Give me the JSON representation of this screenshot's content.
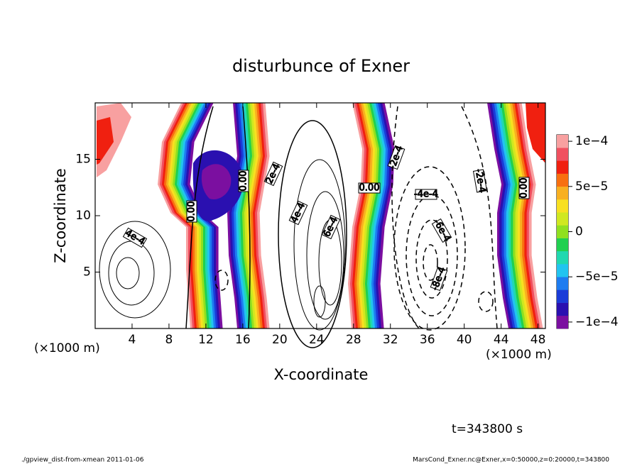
{
  "chart_data": {
    "type": "contour",
    "title": "disturbunce of Exner",
    "x_label": "X-coordinate",
    "y_label": "Z-coordinate",
    "x_unit": "(×1000 m)",
    "y_unit": "(×1000 m)",
    "xlim": [
      0,
      48.8
    ],
    "ylim": [
      0,
      20
    ],
    "xticks": [
      4,
      8,
      12,
      16,
      20,
      24,
      28,
      32,
      36,
      40,
      44,
      48
    ],
    "yticks": [
      5,
      10,
      15
    ],
    "colorbar_lim": [
      -0.0001,
      0.0001
    ],
    "colorbar_ticks": [
      {
        "value": -0.0001,
        "label": "−1e−4"
      },
      {
        "value": -5e-05,
        "label": "−5e−5"
      },
      {
        "value": 0,
        "label": "0"
      },
      {
        "value": 5e-05,
        "label": "5e−5"
      },
      {
        "value": 0.0001,
        "label": "1e−4"
      }
    ],
    "colors": [
      "#7b0fa0",
      "#2a10b0",
      "#1a3cd8",
      "#1e7cf0",
      "#22c4f0",
      "#20d8b0",
      "#20d050",
      "#90e020",
      "#d0e820",
      "#f8e020",
      "#f8b020",
      "#f87010",
      "#f02010",
      "#f05060",
      "#f8a0a0"
    ],
    "contour_labels": [
      "0.00",
      "0.00",
      "0.00",
      "0.00",
      "2e-4",
      "4e-4",
      "6e-4",
      "4e-4",
      "-2e-4",
      "-4e-4",
      "-6e-4",
      "-8e-4",
      "-2e-4"
    ],
    "time_label": "t=343800 s",
    "footer_left": "./gpview_dist-from-xmean  2011-01-06",
    "footer_right": "MarsCond_Exner.nc@Exner,x=0:50000,z=0:20000,t=343800"
  }
}
